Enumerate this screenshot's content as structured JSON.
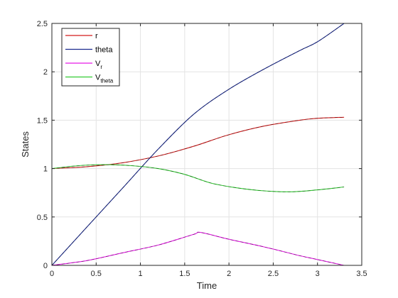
{
  "chart_data": {
    "type": "line",
    "title": "",
    "xlabel": "Time",
    "ylabel": "States",
    "xlim": [
      0,
      3.5
    ],
    "ylim": [
      0,
      2.5
    ],
    "xticks": [
      0,
      0.5,
      1,
      1.5,
      2,
      2.5,
      3,
      3.5
    ],
    "xtick_labels": [
      "0",
      "0.5",
      "1",
      "1.5",
      "2",
      "2.5",
      "3",
      "3.5"
    ],
    "yticks": [
      0,
      0.5,
      1,
      1.5,
      2,
      2.5
    ],
    "ytick_labels": [
      "0",
      "0.5",
      "1",
      "1.5",
      "2",
      "2.5"
    ],
    "grid": true,
    "legend_position": "top-left",
    "series": [
      {
        "name": "r",
        "label_base": "r",
        "label_sub": "",
        "color": "#d41c1c",
        "x": [
          0,
          0.4,
          0.8,
          1.2,
          1.6,
          2.0,
          2.4,
          2.8,
          3.0,
          3.3
        ],
        "y": [
          1.0,
          1.02,
          1.06,
          1.13,
          1.23,
          1.35,
          1.44,
          1.5,
          1.52,
          1.53
        ]
      },
      {
        "name": "theta",
        "label_base": "theta",
        "label_sub": "",
        "color": "#1b2a8e",
        "x": [
          0,
          0.4,
          0.8,
          1.2,
          1.6,
          2.0,
          2.4,
          2.8,
          3.0,
          3.3
        ],
        "y": [
          0,
          0.4,
          0.8,
          1.2,
          1.56,
          1.82,
          2.03,
          2.22,
          2.31,
          2.5
        ]
      },
      {
        "name": "V_r",
        "label_base": "V",
        "label_sub": "r",
        "color": "#e619e6",
        "x": [
          0,
          0.4,
          0.8,
          1.2,
          1.6,
          1.68,
          2.0,
          2.4,
          2.8,
          3.0,
          3.3
        ],
        "y": [
          0,
          0.05,
          0.13,
          0.21,
          0.32,
          0.34,
          0.27,
          0.19,
          0.1,
          0.06,
          0
        ]
      },
      {
        "name": "V_theta",
        "label_base": "V",
        "label_sub": "theta",
        "color": "#33cc33",
        "x": [
          0,
          0.3,
          0.6,
          0.9,
          1.2,
          1.5,
          1.8,
          2.1,
          2.4,
          2.7,
          3.0,
          3.3
        ],
        "y": [
          1.0,
          1.03,
          1.04,
          1.03,
          1.0,
          0.94,
          0.85,
          0.8,
          0.77,
          0.76,
          0.78,
          0.81
        ]
      }
    ]
  }
}
